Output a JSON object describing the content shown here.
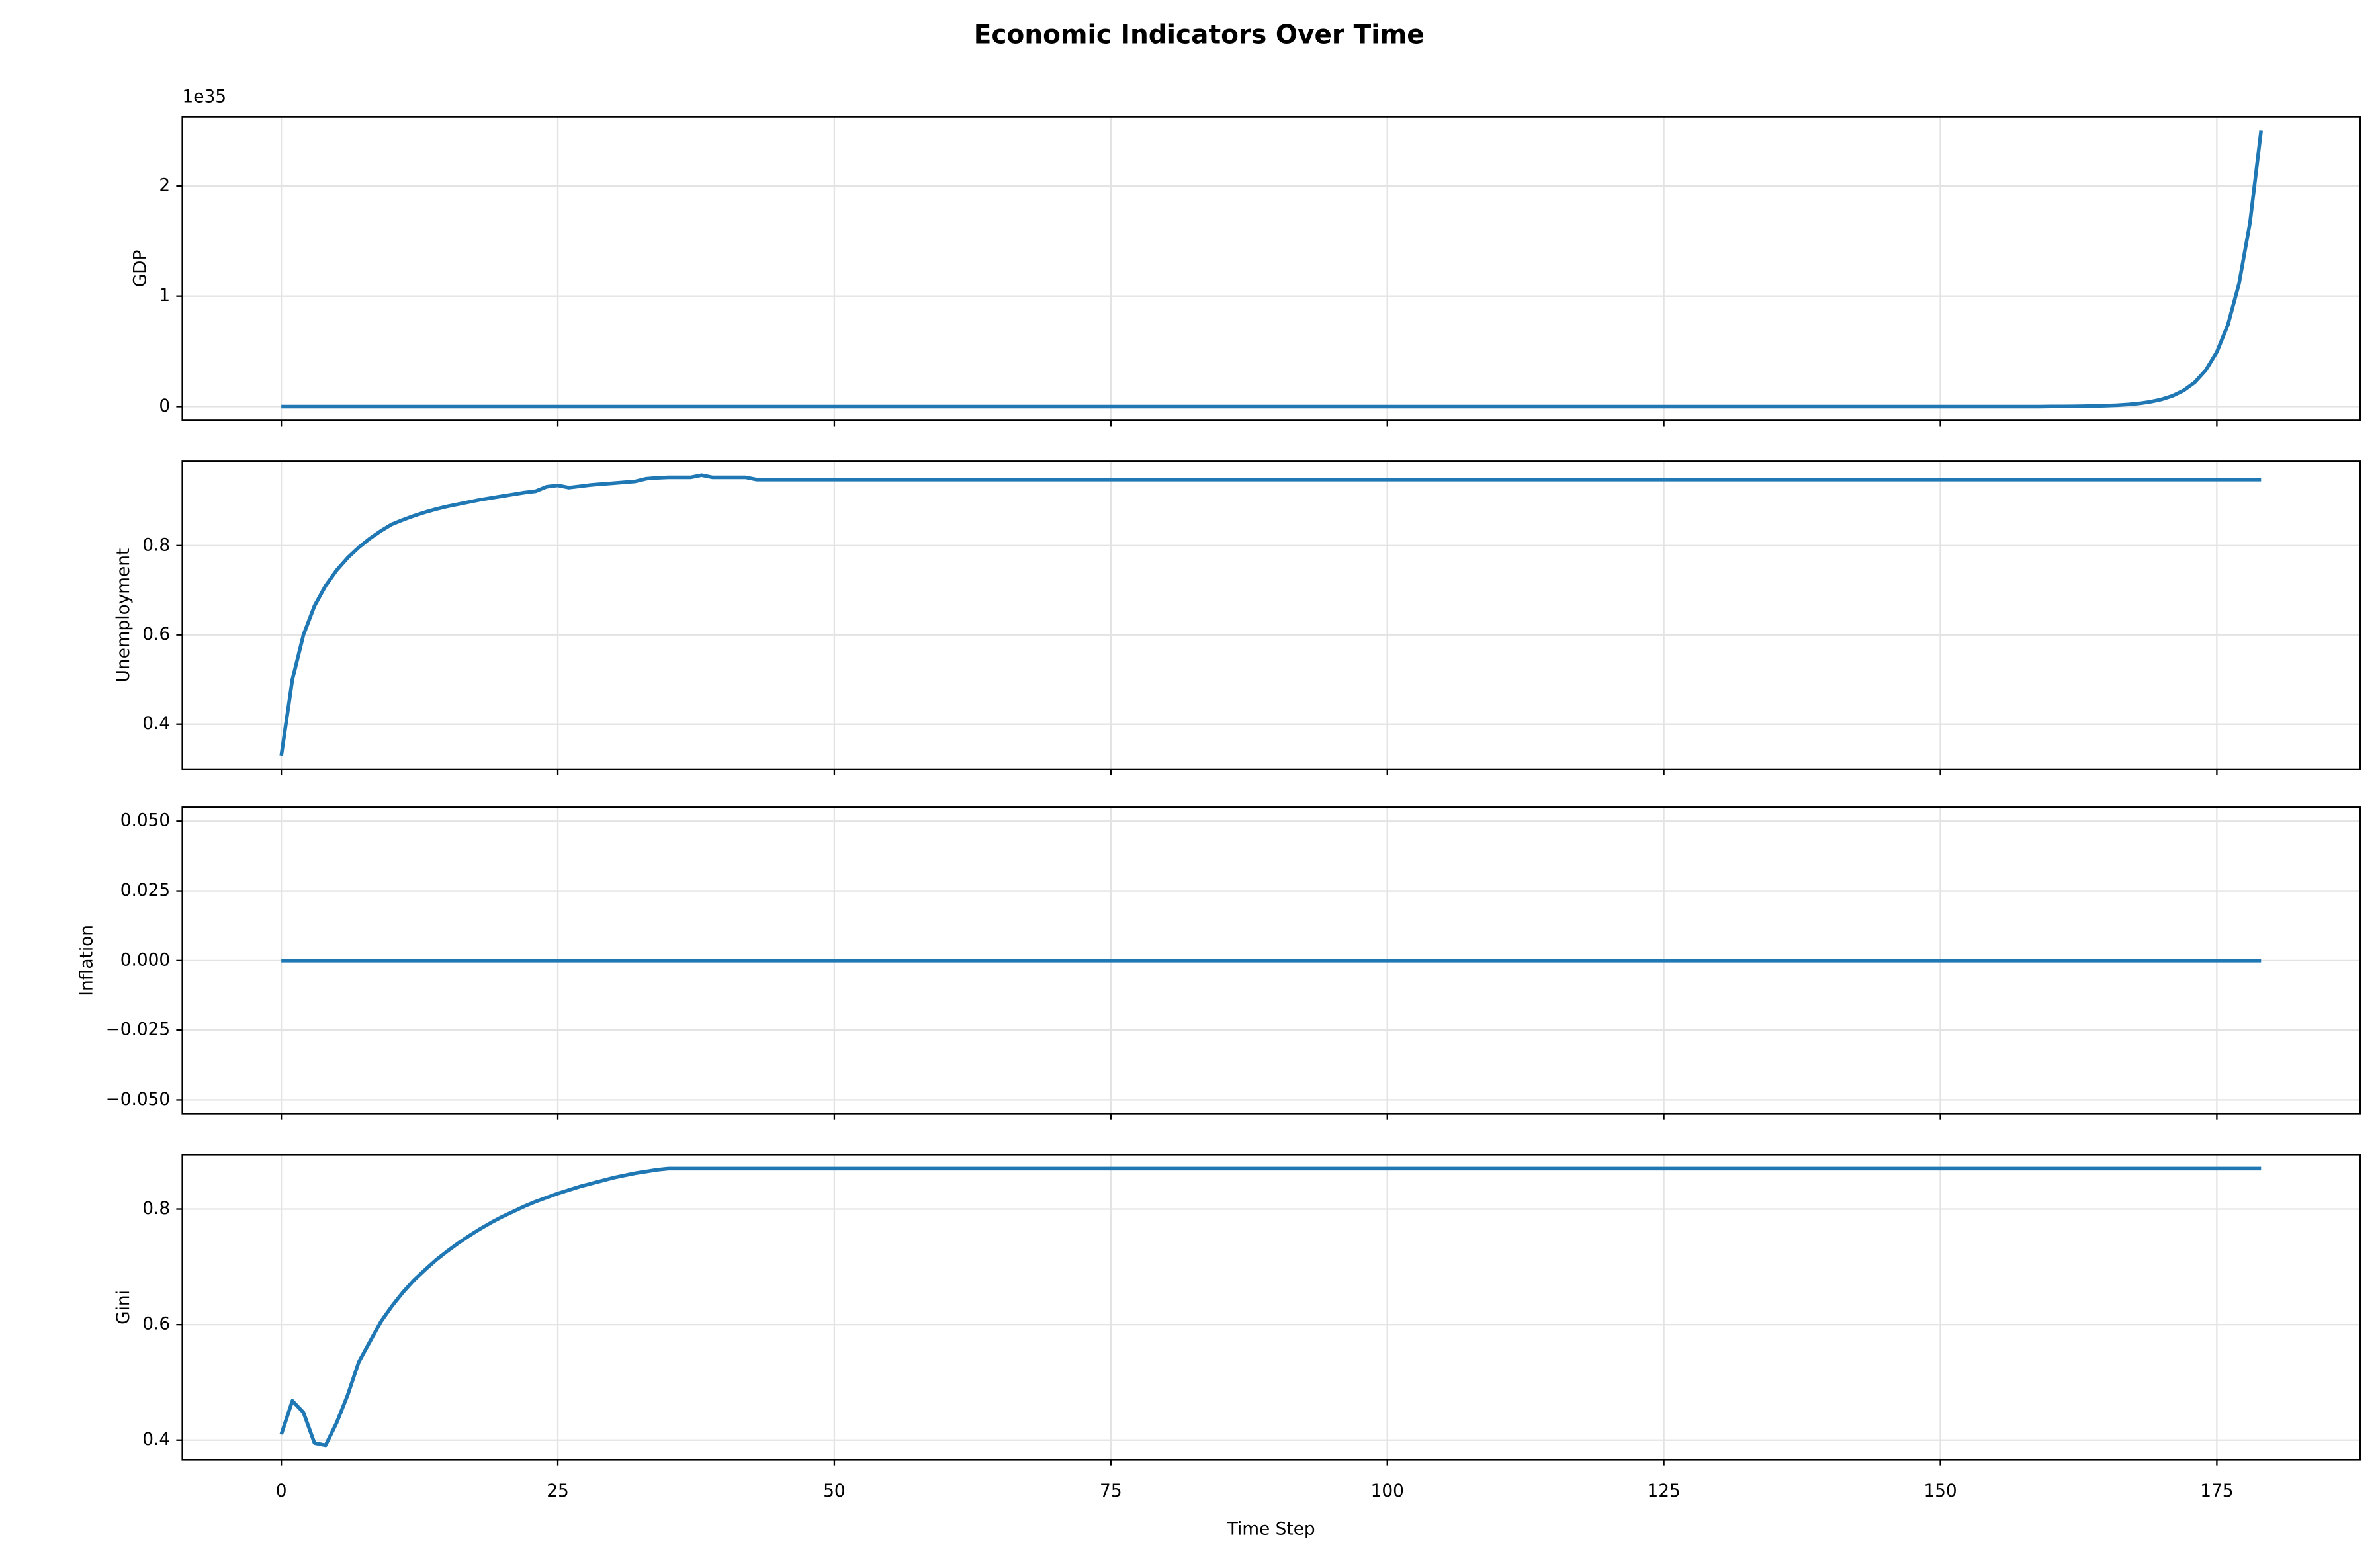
{
  "chart_data": {
    "type": "line",
    "title": "Economic Indicators Over Time",
    "xlabel": "Time Step",
    "grid": true,
    "x": [
      0,
      1,
      2,
      3,
      4,
      5,
      6,
      7,
      8,
      9,
      10,
      11,
      12,
      13,
      14,
      15,
      16,
      17,
      18,
      19,
      20,
      21,
      22,
      23,
      24,
      25,
      26,
      27,
      28,
      29,
      30,
      31,
      32,
      33,
      34,
      35,
      36,
      37,
      38,
      39,
      40,
      41,
      42,
      43,
      44,
      45,
      46,
      47,
      48,
      49,
      50,
      51,
      52,
      53,
      54,
      55,
      56,
      57,
      58,
      59,
      60,
      61,
      62,
      63,
      64,
      65,
      66,
      67,
      68,
      69,
      70,
      71,
      72,
      73,
      74,
      75,
      76,
      77,
      78,
      79,
      80,
      81,
      82,
      83,
      84,
      85,
      86,
      87,
      88,
      89,
      90,
      91,
      92,
      93,
      94,
      95,
      96,
      97,
      98,
      99,
      100,
      101,
      102,
      103,
      104,
      105,
      106,
      107,
      108,
      109,
      110,
      111,
      112,
      113,
      114,
      115,
      116,
      117,
      118,
      119,
      120,
      121,
      122,
      123,
      124,
      125,
      126,
      127,
      128,
      129,
      130,
      131,
      132,
      133,
      134,
      135,
      136,
      137,
      138,
      139,
      140,
      141,
      142,
      143,
      144,
      145,
      146,
      147,
      148,
      149,
      150,
      151,
      152,
      153,
      154,
      155,
      156,
      157,
      158,
      159,
      160,
      161,
      162,
      163,
      164,
      165,
      166,
      167,
      168,
      169,
      170,
      171,
      172,
      173,
      174,
      175,
      176,
      177,
      178,
      179
    ],
    "xlim": [
      -8.95,
      187.95
    ],
    "xticks": [
      0,
      25,
      50,
      75,
      100,
      125,
      150,
      175
    ],
    "subplots": [
      {
        "ylabel": "GDP",
        "offset_label": "1e35",
        "ylim": [
          -0.125,
          2.625
        ],
        "yticks": [
          0,
          1,
          2
        ],
        "series": [
          {
            "color": "#1f77b4",
            "values": [
              0,
              0,
              0,
              0,
              0,
              0,
              0,
              0,
              0,
              0,
              0,
              0,
              0,
              0,
              0,
              0,
              0,
              0,
              0,
              0,
              0,
              0,
              0,
              0,
              0,
              0,
              0,
              0,
              0,
              0,
              0,
              0,
              0,
              0,
              0,
              0,
              0,
              0,
              0,
              0,
              0,
              0,
              0,
              0,
              0,
              0,
              0,
              0,
              0,
              0,
              0,
              0,
              0,
              0,
              0,
              0,
              0,
              0,
              0,
              0,
              0,
              0,
              0,
              0,
              0,
              0,
              0,
              0,
              0,
              0,
              0,
              0,
              0,
              0,
              0,
              0,
              0,
              0,
              0,
              0,
              0,
              0,
              0,
              0,
              0,
              0,
              0,
              0,
              0,
              0,
              0,
              0,
              0,
              0,
              0,
              0,
              0,
              0,
              0,
              0,
              0,
              0,
              0,
              0,
              0,
              0,
              0,
              0,
              0,
              0,
              0,
              0,
              0,
              0,
              0,
              0,
              0,
              0,
              0,
              0,
              0,
              0,
              0,
              0,
              0,
              0,
              0,
              0,
              0,
              0,
              0,
              0,
              0,
              0,
              0,
              0,
              0,
              0,
              0,
              0,
              0,
              0,
              0,
              0,
              0,
              0,
              0,
              0,
              0,
              0,
              0,
              0,
              0,
              0,
              0,
              0,
              0,
              0,
              0,
              0,
              0.0011,
              0.0017,
              0.0025,
              0.0038,
              0.0057,
              0.0086,
              0.0128,
              0.0193,
              0.0289,
              0.0434,
              0.065,
              0.0975,
              0.146,
              0.219,
              0.329,
              0.494,
              0.741,
              1.111,
              1.667,
              2.5
            ]
          }
        ]
      },
      {
        "ylabel": "Unemployment",
        "ylim": [
          0.299,
          0.989
        ],
        "yticks": [
          0.4,
          0.6,
          0.8
        ],
        "series": [
          {
            "color": "#1f77b4",
            "values": [
              0.33,
              0.5,
              0.6,
              0.665,
              0.71,
              0.745,
              0.773,
              0.796,
              0.816,
              0.833,
              0.848,
              0.858,
              0.867,
              0.875,
              0.882,
              0.888,
              0.893,
              0.898,
              0.903,
              0.907,
              0.911,
              0.915,
              0.919,
              0.922,
              0.932,
              0.935,
              0.93,
              0.933,
              0.936,
              0.938,
              0.94,
              0.942,
              0.944,
              0.95,
              0.952,
              0.953,
              0.953,
              0.953,
              0.958,
              0.953,
              0.953,
              0.953,
              0.953,
              0.948,
              0.948,
              0.948,
              0.948,
              0.948,
              0.948,
              0.948,
              0.948,
              0.948,
              0.948,
              0.948,
              0.948,
              0.948,
              0.948,
              0.948,
              0.948,
              0.948,
              0.948,
              0.948,
              0.948,
              0.948,
              0.948,
              0.948,
              0.948,
              0.948,
              0.948,
              0.948,
              0.948,
              0.948,
              0.948,
              0.948,
              0.948,
              0.948,
              0.948,
              0.948,
              0.948,
              0.948,
              0.948,
              0.948,
              0.948,
              0.948,
              0.948,
              0.948,
              0.948,
              0.948,
              0.948,
              0.948,
              0.948,
              0.948,
              0.948,
              0.948,
              0.948,
              0.948,
              0.948,
              0.948,
              0.948,
              0.948,
              0.948,
              0.948,
              0.948,
              0.948,
              0.948,
              0.948,
              0.948,
              0.948,
              0.948,
              0.948,
              0.948,
              0.948,
              0.948,
              0.948,
              0.948,
              0.948,
              0.948,
              0.948,
              0.948,
              0.948,
              0.948,
              0.948,
              0.948,
              0.948,
              0.948,
              0.948,
              0.948,
              0.948,
              0.948,
              0.948,
              0.948,
              0.948,
              0.948,
              0.948,
              0.948,
              0.948,
              0.948,
              0.948,
              0.948,
              0.948,
              0.948,
              0.948,
              0.948,
              0.948,
              0.948,
              0.948,
              0.948,
              0.948,
              0.948,
              0.948,
              0.948,
              0.948,
              0.948,
              0.948,
              0.948,
              0.948,
              0.948,
              0.948,
              0.948,
              0.948,
              0.948,
              0.948,
              0.948,
              0.948,
              0.948,
              0.948,
              0.948,
              0.948,
              0.948,
              0.948,
              0.948,
              0.948,
              0.948,
              0.948,
              0.948,
              0.948,
              0.948,
              0.948,
              0.948,
              0.948
            ]
          }
        ]
      },
      {
        "ylabel": "Inflation",
        "ylim": [
          -0.055,
          0.055
        ],
        "yticks": [
          {
            "value": -0.05,
            "label": "−0.050"
          },
          {
            "value": -0.025,
            "label": "−0.025"
          },
          {
            "value": 0,
            "label": "0.000"
          },
          {
            "value": 0.025,
            "label": "0.025"
          },
          {
            "value": 0.05,
            "label": "0.050"
          }
        ],
        "series": [
          {
            "color": "#1f77b4",
            "values": [
              0,
              0,
              0,
              0,
              0,
              0,
              0,
              0,
              0,
              0,
              0,
              0,
              0,
              0,
              0,
              0,
              0,
              0,
              0,
              0,
              0,
              0,
              0,
              0,
              0,
              0,
              0,
              0,
              0,
              0,
              0,
              0,
              0,
              0,
              0,
              0,
              0,
              0,
              0,
              0,
              0,
              0,
              0,
              0,
              0,
              0,
              0,
              0,
              0,
              0,
              0,
              0,
              0,
              0,
              0,
              0,
              0,
              0,
              0,
              0,
              0,
              0,
              0,
              0,
              0,
              0,
              0,
              0,
              0,
              0,
              0,
              0,
              0,
              0,
              0,
              0,
              0,
              0,
              0,
              0,
              0,
              0,
              0,
              0,
              0,
              0,
              0,
              0,
              0,
              0,
              0,
              0,
              0,
              0,
              0,
              0,
              0,
              0,
              0,
              0,
              0,
              0,
              0,
              0,
              0,
              0,
              0,
              0,
              0,
              0,
              0,
              0,
              0,
              0,
              0,
              0,
              0,
              0,
              0,
              0,
              0,
              0,
              0,
              0,
              0,
              0,
              0,
              0,
              0,
              0,
              0,
              0,
              0,
              0,
              0,
              0,
              0,
              0,
              0,
              0,
              0,
              0,
              0,
              0,
              0,
              0,
              0,
              0,
              0,
              0,
              0,
              0,
              0,
              0,
              0,
              0,
              0,
              0,
              0,
              0,
              0,
              0,
              0,
              0,
              0,
              0,
              0,
              0,
              0,
              0,
              0,
              0,
              0,
              0,
              0,
              0,
              0,
              0,
              0,
              0
            ]
          }
        ]
      },
      {
        "ylabel": "Gini",
        "ylim": [
          0.366,
          0.894
        ],
        "yticks": [
          0.4,
          0.6,
          0.8
        ],
        "series": [
          {
            "color": "#1f77b4",
            "values": [
              0.41,
              0.468,
              0.448,
              0.395,
              0.391,
              0.43,
              0.478,
              0.535,
              0.57,
              0.605,
              0.632,
              0.656,
              0.677,
              0.695,
              0.712,
              0.727,
              0.741,
              0.754,
              0.766,
              0.777,
              0.787,
              0.796,
              0.805,
              0.813,
              0.82,
              0.827,
              0.833,
              0.839,
              0.844,
              0.849,
              0.854,
              0.858,
              0.862,
              0.865,
              0.868,
              0.87,
              0.87,
              0.87,
              0.87,
              0.87,
              0.87,
              0.87,
              0.87,
              0.87,
              0.87,
              0.87,
              0.87,
              0.87,
              0.87,
              0.87,
              0.87,
              0.87,
              0.87,
              0.87,
              0.87,
              0.87,
              0.87,
              0.87,
              0.87,
              0.87,
              0.87,
              0.87,
              0.87,
              0.87,
              0.87,
              0.87,
              0.87,
              0.87,
              0.87,
              0.87,
              0.87,
              0.87,
              0.87,
              0.87,
              0.87,
              0.87,
              0.87,
              0.87,
              0.87,
              0.87,
              0.87,
              0.87,
              0.87,
              0.87,
              0.87,
              0.87,
              0.87,
              0.87,
              0.87,
              0.87,
              0.87,
              0.87,
              0.87,
              0.87,
              0.87,
              0.87,
              0.87,
              0.87,
              0.87,
              0.87,
              0.87,
              0.87,
              0.87,
              0.87,
              0.87,
              0.87,
              0.87,
              0.87,
              0.87,
              0.87,
              0.87,
              0.87,
              0.87,
              0.87,
              0.87,
              0.87,
              0.87,
              0.87,
              0.87,
              0.87,
              0.87,
              0.87,
              0.87,
              0.87,
              0.87,
              0.87,
              0.87,
              0.87,
              0.87,
              0.87,
              0.87,
              0.87,
              0.87,
              0.87,
              0.87,
              0.87,
              0.87,
              0.87,
              0.87,
              0.87,
              0.87,
              0.87,
              0.87,
              0.87,
              0.87,
              0.87,
              0.87,
              0.87,
              0.87,
              0.87,
              0.87,
              0.87,
              0.87,
              0.87,
              0.87,
              0.87,
              0.87,
              0.87,
              0.87,
              0.87,
              0.87,
              0.87,
              0.87,
              0.87,
              0.87,
              0.87,
              0.87,
              0.87,
              0.87,
              0.87,
              0.87,
              0.87,
              0.87,
              0.87,
              0.87,
              0.87,
              0.87,
              0.87,
              0.87,
              0.87
            ]
          }
        ]
      }
    ]
  }
}
